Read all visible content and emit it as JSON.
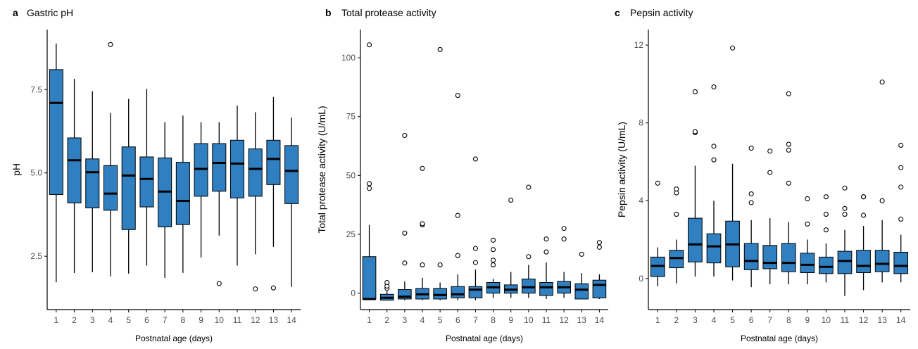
{
  "colors": {
    "box_fill": "#2f7fc1",
    "axis": "#000000",
    "tick_text": "#4d4d4d"
  },
  "chart_data": [
    {
      "type": "box",
      "panel_letter": "a",
      "title": "Gastric pH",
      "xlabel": "Postnatal age (days)",
      "ylabel": "pH",
      "categories": [
        "1",
        "2",
        "3",
        "4",
        "5",
        "6",
        "7",
        "8",
        "9",
        "10",
        "11",
        "12",
        "13",
        "14"
      ],
      "yticks": [
        2.5,
        5.0,
        7.5
      ],
      "ytick_labels": [
        "2.5",
        "5.0",
        "7.5"
      ],
      "ylim": [
        0.9,
        9.3
      ],
      "grid": false,
      "boxes": [
        {
          "x": "1",
          "whisker_low": 1.72,
          "q1": 4.35,
          "median": 7.1,
          "q3": 8.1,
          "whisker_high": 8.88,
          "outliers": []
        },
        {
          "x": "2",
          "whisker_low": 2.0,
          "q1": 4.1,
          "median": 5.38,
          "q3": 6.05,
          "whisker_high": 7.82,
          "outliers": []
        },
        {
          "x": "3",
          "whisker_low": 2.02,
          "q1": 3.95,
          "median": 5.02,
          "q3": 5.42,
          "whisker_high": 7.45,
          "outliers": []
        },
        {
          "x": "4",
          "whisker_low": 1.9,
          "q1": 3.88,
          "median": 4.38,
          "q3": 5.22,
          "whisker_high": 6.8,
          "outliers": [
            8.85
          ]
        },
        {
          "x": "5",
          "whisker_low": 1.98,
          "q1": 3.3,
          "median": 4.92,
          "q3": 5.78,
          "whisker_high": 7.22,
          "outliers": []
        },
        {
          "x": "6",
          "whisker_low": 2.22,
          "q1": 3.98,
          "median": 4.82,
          "q3": 5.48,
          "whisker_high": 7.52,
          "outliers": []
        },
        {
          "x": "7",
          "whisker_low": 1.85,
          "q1": 3.38,
          "median": 4.44,
          "q3": 5.45,
          "whisker_high": 6.52,
          "outliers": []
        },
        {
          "x": "8",
          "whisker_low": 2.0,
          "q1": 3.45,
          "median": 4.16,
          "q3": 5.32,
          "whisker_high": 6.72,
          "outliers": []
        },
        {
          "x": "9",
          "whisker_low": 2.46,
          "q1": 4.3,
          "median": 5.12,
          "q3": 5.88,
          "whisker_high": 6.52,
          "outliers": []
        },
        {
          "x": "10",
          "whisker_low": 3.12,
          "q1": 4.45,
          "median": 5.3,
          "q3": 5.88,
          "whisker_high": 6.52,
          "outliers": [
            1.68
          ]
        },
        {
          "x": "11",
          "whisker_low": 2.22,
          "q1": 4.25,
          "median": 5.28,
          "q3": 5.98,
          "whisker_high": 7.02,
          "outliers": []
        },
        {
          "x": "12",
          "whisker_low": 2.56,
          "q1": 4.3,
          "median": 5.12,
          "q3": 5.72,
          "whisker_high": 6.82,
          "outliers": [
            1.52
          ]
        },
        {
          "x": "13",
          "whisker_low": 2.78,
          "q1": 4.65,
          "median": 5.42,
          "q3": 5.98,
          "whisker_high": 7.28,
          "outliers": [
            1.55
          ]
        },
        {
          "x": "14",
          "whisker_low": 1.58,
          "q1": 4.08,
          "median": 5.06,
          "q3": 5.82,
          "whisker_high": 6.66,
          "outliers": []
        }
      ]
    },
    {
      "type": "box",
      "panel_letter": "b",
      "title": "Total protease activity",
      "xlabel": "Postnatal age (days)",
      "ylabel": "Total protease activity (U/mL)",
      "categories": [
        "1",
        "2",
        "3",
        "4",
        "5",
        "6",
        "7",
        "8",
        "9",
        "10",
        "11",
        "12",
        "13",
        "14"
      ],
      "yticks": [
        0,
        25,
        50,
        75,
        100
      ],
      "ytick_labels": [
        "0",
        "25",
        "50",
        "75",
        "100"
      ],
      "ylim": [
        -7,
        112
      ],
      "grid": false,
      "boxes": [
        {
          "x": "1",
          "whisker_low": -3,
          "q1": -2.5,
          "median": -2.5,
          "q3": 15.5,
          "whisker_high": 29,
          "outliers": [
            44.5,
            46.5,
            105.5
          ]
        },
        {
          "x": "2",
          "whisker_low": -3,
          "q1": -3,
          "median": -2,
          "q3": -0.5,
          "whisker_high": 0.8,
          "outliers": [
            2,
            3,
            4.5
          ]
        },
        {
          "x": "3",
          "whisker_low": -3,
          "q1": -2.5,
          "median": -1.5,
          "q3": 1.5,
          "whisker_high": 5,
          "outliers": [
            12.8,
            25.5,
            67
          ]
        },
        {
          "x": "4",
          "whisker_low": -3,
          "q1": -2.5,
          "median": -0.5,
          "q3": 2,
          "whisker_high": 6.5,
          "outliers": [
            12,
            29,
            29.5,
            53
          ]
        },
        {
          "x": "5",
          "whisker_low": -3,
          "q1": -2.5,
          "median": -0.8,
          "q3": 2,
          "whisker_high": 4.5,
          "outliers": [
            12,
            103.5
          ]
        },
        {
          "x": "6",
          "whisker_low": -3,
          "q1": -2,
          "median": -0.5,
          "q3": 2.8,
          "whisker_high": 8,
          "outliers": [
            16,
            33,
            84
          ]
        },
        {
          "x": "7",
          "whisker_low": -3,
          "q1": -2,
          "median": 1.5,
          "q3": 2.8,
          "whisker_high": 10,
          "outliers": [
            13,
            19,
            57
          ]
        },
        {
          "x": "8",
          "whisker_low": -2,
          "q1": 0,
          "median": 2.5,
          "q3": 4.5,
          "whisker_high": 6,
          "outliers": [
            12,
            14,
            18.5,
            22.5
          ]
        },
        {
          "x": "9",
          "whisker_low": -2,
          "q1": 0,
          "median": 1.5,
          "q3": 3.5,
          "whisker_high": 9,
          "outliers": [
            39.5
          ]
        },
        {
          "x": "10",
          "whisker_low": -2,
          "q1": 0,
          "median": 2.5,
          "q3": 6,
          "whisker_high": 12,
          "outliers": [
            15.5,
            45
          ]
        },
        {
          "x": "11",
          "whisker_low": -2.5,
          "q1": -1,
          "median": 2.5,
          "q3": 4.5,
          "whisker_high": 13,
          "outliers": [
            17.5,
            23
          ]
        },
        {
          "x": "12",
          "whisker_low": -2,
          "q1": 0,
          "median": 2.5,
          "q3": 5,
          "whisker_high": 9,
          "outliers": [
            23,
            27.5
          ]
        },
        {
          "x": "13",
          "whisker_low": -2.5,
          "q1": -2.5,
          "median": 1.5,
          "q3": 4,
          "whisker_high": 8.5,
          "outliers": [
            16.5
          ]
        },
        {
          "x": "14",
          "whisker_low": -2.5,
          "q1": -2,
          "median": 3.5,
          "q3": 5.5,
          "whisker_high": 8,
          "outliers": [
            19.5,
            21.5
          ]
        }
      ]
    },
    {
      "type": "box",
      "panel_letter": "c",
      "title": "Pepsin activity",
      "xlabel": "Postnatal age (days)",
      "ylabel": "Pepsin activity (U/mL)",
      "categories": [
        "1",
        "2",
        "3",
        "4",
        "5",
        "6",
        "7",
        "8",
        "9",
        "10",
        "11",
        "12",
        "13",
        "14"
      ],
      "yticks": [
        0,
        4,
        8,
        12
      ],
      "ytick_labels": [
        "0",
        "4",
        "8",
        "12"
      ],
      "ylim": [
        -1.6,
        12.8
      ],
      "grid": false,
      "boxes": [
        {
          "x": "1",
          "whisker_low": -0.4,
          "q1": 0.1,
          "median": 0.65,
          "q3": 1.1,
          "whisker_high": 1.6,
          "outliers": [
            4.9
          ]
        },
        {
          "x": "2",
          "whisker_low": -0.25,
          "q1": 0.55,
          "median": 1.05,
          "q3": 1.45,
          "whisker_high": 2.0,
          "outliers": [
            3.3,
            4.4,
            4.6
          ]
        },
        {
          "x": "3",
          "whisker_low": 0.1,
          "q1": 0.85,
          "median": 1.75,
          "q3": 3.1,
          "whisker_high": 5.8,
          "outliers": [
            7.5,
            7.55,
            9.6
          ]
        },
        {
          "x": "4",
          "whisker_low": 0.1,
          "q1": 0.8,
          "median": 1.65,
          "q3": 2.3,
          "whisker_high": 4.0,
          "outliers": [
            6.1,
            6.8,
            9.85
          ]
        },
        {
          "x": "5",
          "whisker_low": -0.1,
          "q1": 0.6,
          "median": 1.75,
          "q3": 2.95,
          "whisker_high": 5.9,
          "outliers": [
            11.85
          ]
        },
        {
          "x": "6",
          "whisker_low": -0.45,
          "q1": 0.45,
          "median": 0.9,
          "q3": 1.8,
          "whisker_high": 3.0,
          "outliers": [
            3.9,
            4.35,
            6.7
          ]
        },
        {
          "x": "7",
          "whisker_low": -0.3,
          "q1": 0.5,
          "median": 0.8,
          "q3": 1.7,
          "whisker_high": 3.1,
          "outliers": [
            5.45,
            6.55
          ]
        },
        {
          "x": "8",
          "whisker_low": -0.3,
          "q1": 0.35,
          "median": 0.8,
          "q3": 1.8,
          "whisker_high": 2.9,
          "outliers": [
            4.9,
            6.6,
            6.9,
            9.5
          ]
        },
        {
          "x": "9",
          "whisker_low": -0.3,
          "q1": 0.3,
          "median": 0.7,
          "q3": 1.3,
          "whisker_high": 2.0,
          "outliers": [
            2.8,
            4.1
          ]
        },
        {
          "x": "10",
          "whisker_low": -0.2,
          "q1": 0.25,
          "median": 0.6,
          "q3": 1.1,
          "whisker_high": 1.8,
          "outliers": [
            2.5,
            3.3,
            4.2
          ]
        },
        {
          "x": "11",
          "whisker_low": -0.9,
          "q1": 0.25,
          "median": 0.9,
          "q3": 1.4,
          "whisker_high": 2.5,
          "outliers": [
            3.3,
            3.6,
            4.65
          ]
        },
        {
          "x": "12",
          "whisker_low": -0.6,
          "q1": 0.3,
          "median": 0.65,
          "q3": 1.45,
          "whisker_high": 2.7,
          "outliers": [
            3.25,
            4.2,
            4.2
          ]
        },
        {
          "x": "13",
          "whisker_low": -0.2,
          "q1": 0.35,
          "median": 0.75,
          "q3": 1.45,
          "whisker_high": 3.0,
          "outliers": [
            4.0,
            10.1
          ]
        },
        {
          "x": "14",
          "whisker_low": -0.2,
          "q1": 0.25,
          "median": 0.65,
          "q3": 1.35,
          "whisker_high": 2.25,
          "outliers": [
            3.05,
            4.7,
            5.7,
            6.85
          ]
        }
      ]
    }
  ]
}
